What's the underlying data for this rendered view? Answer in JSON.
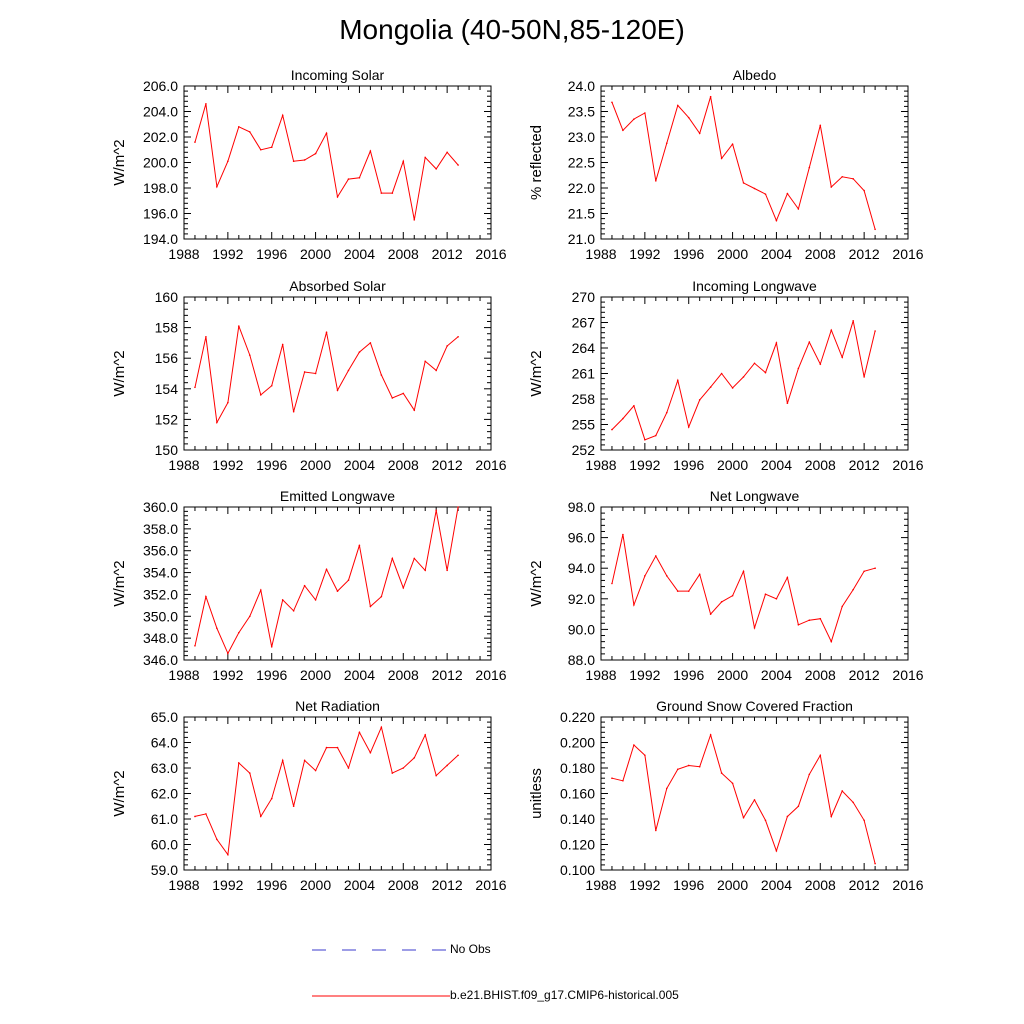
{
  "title": "Mongolia (40-50N,85-120E)",
  "legend": [
    {
      "label": "No Obs",
      "color": "#3b3bcc",
      "style": "dashed"
    },
    {
      "label": "b.e21.BHIST.f09_g17.CMIP6-historical.005",
      "color": "#ff0000",
      "style": "solid"
    }
  ],
  "chart_data": [
    {
      "type": "line",
      "title": "Incoming Solar",
      "ylabel": "W/m^2",
      "xlim": [
        1988,
        2016
      ],
      "ylim": [
        194,
        206
      ],
      "yticks": [
        194,
        196,
        198,
        200,
        202,
        204,
        206
      ],
      "ytick_labels": [
        "194.0",
        "196.0",
        "198.0",
        "200.0",
        "202.0",
        "204.0",
        "206.0"
      ],
      "xticks": [
        1988,
        1992,
        1996,
        2000,
        2004,
        2008,
        2012,
        2016
      ],
      "xtick_labels": [
        "1988",
        "1992",
        "1996",
        "2000",
        "2004",
        "2008",
        "2012",
        "2016"
      ],
      "x": [
        1989,
        1990,
        1991,
        1992,
        1993,
        1994,
        1995,
        1996,
        1997,
        1998,
        1999,
        2000,
        2001,
        2002,
        2003,
        2004,
        2005,
        2006,
        2007,
        2008,
        2009,
        2010,
        2011,
        2012,
        2013
      ],
      "values": [
        201.6,
        204.6,
        198.1,
        200.1,
        202.8,
        202.4,
        201.0,
        201.2,
        203.7,
        200.1,
        200.2,
        200.7,
        202.3,
        197.3,
        198.7,
        198.8,
        200.9,
        197.6,
        197.6,
        200.1,
        195.5,
        200.4,
        199.5,
        200.8,
        199.8
      ]
    },
    {
      "type": "line",
      "title": "Albedo",
      "ylabel": "% reflected",
      "xlim": [
        1988,
        2016
      ],
      "ylim": [
        21.0,
        24.0
      ],
      "yticks": [
        21.0,
        21.5,
        22.0,
        22.5,
        23.0,
        23.5,
        24.0
      ],
      "ytick_labels": [
        "21.0",
        "21.5",
        "22.0",
        "22.5",
        "23.0",
        "23.5",
        "24.0"
      ],
      "xticks": [
        1988,
        1992,
        1996,
        2000,
        2004,
        2008,
        2012,
        2016
      ],
      "xtick_labels": [
        "1988",
        "1992",
        "1996",
        "2000",
        "2004",
        "2008",
        "2012",
        "2016"
      ],
      "x": [
        1989,
        1990,
        1991,
        1992,
        1993,
        1994,
        1995,
        1996,
        1997,
        1998,
        1999,
        2000,
        2001,
        2002,
        2003,
        2004,
        2005,
        2006,
        2007,
        2008,
        2009,
        2010,
        2011,
        2012,
        2013
      ],
      "values": [
        23.68,
        23.13,
        23.35,
        23.47,
        22.14,
        22.88,
        23.62,
        23.38,
        23.07,
        23.79,
        22.58,
        22.86,
        22.1,
        21.99,
        21.88,
        21.36,
        21.89,
        21.59,
        22.4,
        23.23,
        22.02,
        22.22,
        22.18,
        21.95,
        21.19
      ]
    },
    {
      "type": "line",
      "title": "Absorbed Solar",
      "ylabel": "W/m^2",
      "xlim": [
        1988,
        2016
      ],
      "ylim": [
        150,
        160
      ],
      "yticks": [
        150,
        152,
        154,
        156,
        158,
        160
      ],
      "ytick_labels": [
        "150",
        "152",
        "154",
        "156",
        "158",
        "160"
      ],
      "xticks": [
        1988,
        1992,
        1996,
        2000,
        2004,
        2008,
        2012,
        2016
      ],
      "xtick_labels": [
        "1988",
        "1992",
        "1996",
        "2000",
        "2004",
        "2008",
        "2012",
        "2016"
      ],
      "x": [
        1989,
        1990,
        1991,
        1992,
        1993,
        1994,
        1995,
        1996,
        1997,
        1998,
        1999,
        2000,
        2001,
        2002,
        2003,
        2004,
        2005,
        2006,
        2007,
        2008,
        2009,
        2010,
        2011,
        2012,
        2013
      ],
      "values": [
        154.1,
        157.4,
        151.8,
        153.1,
        158.1,
        156.2,
        153.6,
        154.2,
        156.9,
        152.5,
        155.1,
        155.0,
        157.7,
        153.9,
        155.2,
        156.4,
        157.0,
        154.9,
        153.4,
        153.7,
        152.6,
        155.8,
        155.2,
        156.8,
        157.4
      ]
    },
    {
      "type": "line",
      "title": "Incoming Longwave",
      "ylabel": "W/m^2",
      "xlim": [
        1988,
        2016
      ],
      "ylim": [
        252,
        270
      ],
      "yticks": [
        252,
        255,
        258,
        261,
        264,
        267,
        270
      ],
      "ytick_labels": [
        "252",
        "255",
        "258",
        "261",
        "264",
        "267",
        "270"
      ],
      "xticks": [
        1988,
        1992,
        1996,
        2000,
        2004,
        2008,
        2012,
        2016
      ],
      "xtick_labels": [
        "1988",
        "1992",
        "1996",
        "2000",
        "2004",
        "2008",
        "2012",
        "2016"
      ],
      "x": [
        1989,
        1990,
        1991,
        1992,
        1993,
        1994,
        1995,
        1996,
        1997,
        1998,
        1999,
        2000,
        2001,
        2002,
        2003,
        2004,
        2005,
        2006,
        2007,
        2008,
        2009,
        2010,
        2011,
        2012,
        2013
      ],
      "values": [
        254.4,
        255.7,
        257.2,
        253.2,
        253.7,
        256.4,
        260.2,
        254.7,
        257.9,
        259.4,
        261.0,
        259.3,
        260.6,
        262.2,
        261.1,
        264.6,
        257.5,
        261.6,
        264.7,
        262.1,
        266.1,
        262.9,
        267.2,
        260.6,
        266.0
      ]
    },
    {
      "type": "line",
      "title": "Emitted Longwave",
      "ylabel": "W/m^2",
      "xlim": [
        1988,
        2016
      ],
      "ylim": [
        346,
        360
      ],
      "yticks": [
        346,
        348,
        350,
        352,
        354,
        356,
        358,
        360
      ],
      "ytick_labels": [
        "346.0",
        "348.0",
        "350.0",
        "352.0",
        "354.0",
        "356.0",
        "358.0",
        "360.0"
      ],
      "xticks": [
        1988,
        1992,
        1996,
        2000,
        2004,
        2008,
        2012,
        2016
      ],
      "xtick_labels": [
        "1988",
        "1992",
        "1996",
        "2000",
        "2004",
        "2008",
        "2012",
        "2016"
      ],
      "x": [
        1989,
        1990,
        1991,
        1992,
        1993,
        1994,
        1995,
        1996,
        1997,
        1998,
        1999,
        2000,
        2001,
        2002,
        2003,
        2004,
        2005,
        2006,
        2007,
        2008,
        2009,
        2010,
        2011,
        2012,
        2013
      ],
      "values": [
        347.3,
        351.8,
        348.9,
        346.6,
        348.5,
        350.0,
        352.4,
        347.2,
        351.5,
        350.5,
        352.8,
        351.5,
        354.3,
        352.3,
        353.3,
        356.5,
        350.9,
        351.8,
        355.3,
        352.6,
        355.3,
        354.2,
        359.7,
        354.2,
        360.0
      ]
    },
    {
      "type": "line",
      "title": "Net Longwave",
      "ylabel": "W/m^2",
      "xlim": [
        1988,
        2016
      ],
      "ylim": [
        88,
        98
      ],
      "yticks": [
        88,
        90,
        92,
        94,
        96,
        98
      ],
      "ytick_labels": [
        "88.0",
        "90.0",
        "92.0",
        "94.0",
        "96.0",
        "98.0"
      ],
      "xticks": [
        1988,
        1992,
        1996,
        2000,
        2004,
        2008,
        2012,
        2016
      ],
      "xtick_labels": [
        "1988",
        "1992",
        "1996",
        "2000",
        "2004",
        "2008",
        "2012",
        "2016"
      ],
      "x": [
        1989,
        1990,
        1991,
        1992,
        1993,
        1994,
        1995,
        1996,
        1997,
        1998,
        1999,
        2000,
        2001,
        2002,
        2003,
        2004,
        2005,
        2006,
        2007,
        2008,
        2009,
        2010,
        2011,
        2012,
        2013
      ],
      "values": [
        93.0,
        96.2,
        91.6,
        93.5,
        94.8,
        93.5,
        92.5,
        92.5,
        93.6,
        91.0,
        91.8,
        92.2,
        93.8,
        90.1,
        92.3,
        92.0,
        93.4,
        90.3,
        90.6,
        90.7,
        89.2,
        91.5,
        92.6,
        93.8,
        94.0
      ]
    },
    {
      "type": "line",
      "title": "Net Radiation",
      "ylabel": "W/m^2",
      "xlim": [
        1988,
        2016
      ],
      "ylim": [
        59,
        65
      ],
      "yticks": [
        59,
        60,
        61,
        62,
        63,
        64,
        65
      ],
      "ytick_labels": [
        "59.0",
        "60.0",
        "61.0",
        "62.0",
        "63.0",
        "64.0",
        "65.0"
      ],
      "xticks": [
        1988,
        1992,
        1996,
        2000,
        2004,
        2008,
        2012,
        2016
      ],
      "xtick_labels": [
        "1988",
        "1992",
        "1996",
        "2000",
        "2004",
        "2008",
        "2012",
        "2016"
      ],
      "x": [
        1989,
        1990,
        1991,
        1992,
        1993,
        1994,
        1995,
        1996,
        1997,
        1998,
        1999,
        2000,
        2001,
        2002,
        2003,
        2004,
        2005,
        2006,
        2007,
        2008,
        2009,
        2010,
        2011,
        2012,
        2013
      ],
      "values": [
        61.1,
        61.2,
        60.2,
        59.6,
        63.2,
        62.8,
        61.1,
        61.8,
        63.3,
        61.5,
        63.3,
        62.9,
        63.8,
        63.8,
        63.0,
        64.4,
        63.6,
        64.6,
        62.8,
        63.0,
        63.4,
        64.3,
        62.7,
        63.1,
        63.5
      ]
    },
    {
      "type": "line",
      "title": "Ground Snow Covered Fraction",
      "ylabel": "unitless",
      "xlim": [
        1988,
        2016
      ],
      "ylim": [
        0.1,
        0.22
      ],
      "yticks": [
        0.1,
        0.12,
        0.14,
        0.16,
        0.18,
        0.2,
        0.22
      ],
      "ytick_labels": [
        "0.100",
        "0.120",
        "0.140",
        "0.160",
        "0.180",
        "0.200",
        "0.220"
      ],
      "xticks": [
        1988,
        1992,
        1996,
        2000,
        2004,
        2008,
        2012,
        2016
      ],
      "xtick_labels": [
        "1988",
        "1992",
        "1996",
        "2000",
        "2004",
        "2008",
        "2012",
        "2016"
      ],
      "x": [
        1989,
        1990,
        1991,
        1992,
        1993,
        1994,
        1995,
        1996,
        1997,
        1998,
        1999,
        2000,
        2001,
        2002,
        2003,
        2004,
        2005,
        2006,
        2007,
        2008,
        2009,
        2010,
        2011,
        2012,
        2013
      ],
      "values": [
        0.172,
        0.17,
        0.198,
        0.19,
        0.131,
        0.164,
        0.179,
        0.182,
        0.181,
        0.206,
        0.176,
        0.168,
        0.141,
        0.155,
        0.139,
        0.115,
        0.142,
        0.15,
        0.175,
        0.19,
        0.142,
        0.162,
        0.153,
        0.139,
        0.105
      ]
    }
  ]
}
